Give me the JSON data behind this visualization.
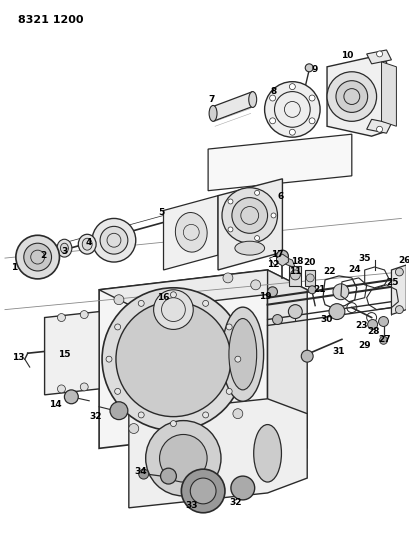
{
  "title": "8321 1200",
  "bg_color": "#ffffff",
  "line_color": "#2a2a2a",
  "text_color": "#000000",
  "fig_width": 4.1,
  "fig_height": 5.33,
  "dpi": 100
}
